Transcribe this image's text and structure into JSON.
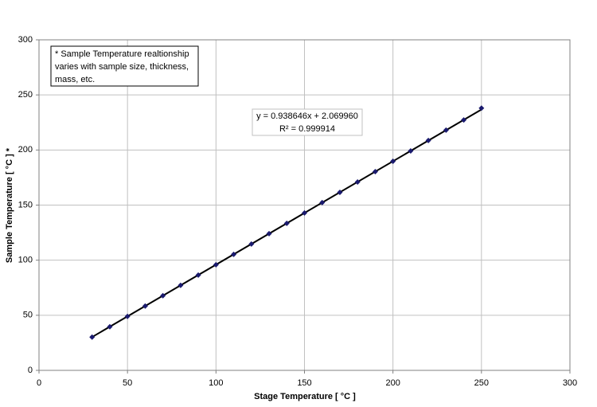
{
  "chart_data": {
    "type": "scatter",
    "x_label": "Stage Temperature [ °C ]",
    "y_label": "Sample Temperature [ °C ] *",
    "x": [
      30,
      40,
      50,
      60,
      70,
      80,
      90,
      100,
      110,
      120,
      130,
      140,
      150,
      160,
      170,
      180,
      190,
      200,
      210,
      220,
      230,
      240,
      250
    ],
    "values": [
      30.2,
      39.6,
      49,
      58.4,
      67.8,
      77.2,
      86.5,
      95.9,
      105.3,
      114.7,
      124.1,
      133.5,
      142.9,
      152.3,
      161.6,
      171,
      180.4,
      189.8,
      199.2,
      208.6,
      218,
      227.3,
      238
    ],
    "color": "#1a1a6e",
    "trendline": {
      "slope": 0.938646,
      "intercept": 2.06996,
      "color": "#000000",
      "equation": "y = 0.938646x + 2.069960",
      "r_squared": "R² = 0.999914"
    },
    "note": [
      "* Sample Temperature realtionship",
      "varies with sample size, thickness,",
      "mass, etc."
    ],
    "xlim": [
      0,
      300
    ],
    "xticks": [
      0,
      50,
      100,
      150,
      200,
      250,
      300
    ],
    "ylim": [
      0,
      300
    ],
    "yticks": [
      0,
      50,
      100,
      150,
      200,
      250,
      300
    ],
    "grid": true
  }
}
